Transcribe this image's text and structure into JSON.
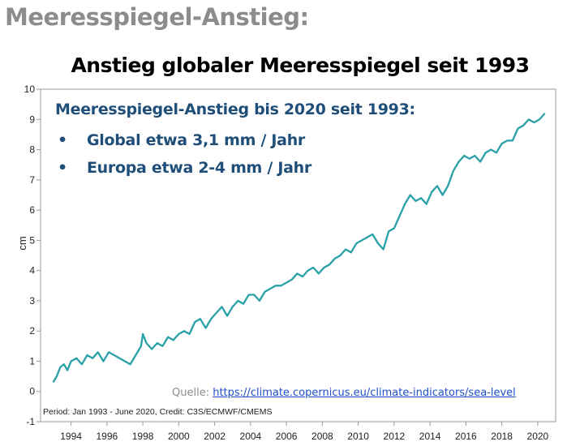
{
  "heading": "Meeresspiegel-Anstieg:",
  "annotation": {
    "title": "Meeresspiegel-Anstieg bis 2020 seit 1993:",
    "bullets": [
      {
        "marker": "•",
        "text": "Global etwa 3,1 mm / Jahr"
      },
      {
        "marker": "•",
        "text": "Europa etwa 2-4 mm / Jahr"
      }
    ]
  },
  "source": {
    "label": "Quelle:",
    "link_text": "https://climate.copernicus.eu/climate-indicators/sea-level"
  },
  "colors": {
    "line": "#2aa0a8",
    "annotation_text": "#1f4e79",
    "heading": "#8c8c8c",
    "link": "#1f4ec9"
  },
  "chart_data": {
    "type": "line",
    "title": "Anstieg globaler Meeresspiegel seit 1993",
    "xlabel": "",
    "ylabel": "cm",
    "note": "Period: Jan 1993 - June 2020, Credit: C3S/ECMWF/CMEMS",
    "xlim": [
      1992.3,
      2021.0
    ],
    "ylim": [
      -1,
      10
    ],
    "grid": false,
    "x_ticks": [
      1994,
      1996,
      1998,
      2000,
      2002,
      2004,
      2006,
      2008,
      2010,
      2012,
      2014,
      2016,
      2018,
      2020
    ],
    "y_ticks": [
      -1,
      0,
      1,
      2,
      3,
      4,
      5,
      6,
      7,
      8,
      9,
      10
    ],
    "series": [
      {
        "x": [
          1993.0,
          1993.2,
          1993.4,
          1993.6,
          1993.8,
          1994.0,
          1994.3,
          1994.6,
          1994.9,
          1995.2,
          1995.5,
          1995.8,
          1996.1,
          1996.4,
          1996.7,
          1997.0,
          1997.3,
          1997.6,
          1997.9,
          1998.0,
          1998.2,
          1998.5,
          1998.8,
          1999.1,
          1999.4,
          1999.7,
          2000.0,
          2000.3,
          2000.6,
          2000.9,
          2001.2,
          2001.5,
          2001.8,
          2002.1,
          2002.4,
          2002.7,
          2003.0,
          2003.3,
          2003.6,
          2003.9,
          2004.2,
          2004.5,
          2004.8,
          2005.1,
          2005.4,
          2005.7,
          2006.0,
          2006.3,
          2006.6,
          2006.9,
          2007.2,
          2007.5,
          2007.8,
          2008.1,
          2008.4,
          2008.7,
          2009.0,
          2009.3,
          2009.6,
          2009.9,
          2010.2,
          2010.5,
          2010.8,
          2011.1,
          2011.4,
          2011.7,
          2012.0,
          2012.3,
          2012.6,
          2012.9,
          2013.2,
          2013.5,
          2013.8,
          2014.1,
          2014.4,
          2014.7,
          2015.0,
          2015.3,
          2015.6,
          2015.9,
          2016.2,
          2016.5,
          2016.8,
          2017.1,
          2017.4,
          2017.7,
          2018.0,
          2018.3,
          2018.6,
          2018.9,
          2019.2,
          2019.5,
          2019.8,
          2020.1,
          2020.4
        ],
        "y": [
          0.3,
          0.5,
          0.8,
          0.9,
          0.7,
          1.0,
          1.1,
          0.9,
          1.2,
          1.1,
          1.3,
          1.0,
          1.3,
          1.2,
          1.1,
          1.0,
          0.9,
          1.2,
          1.5,
          1.9,
          1.6,
          1.4,
          1.6,
          1.5,
          1.8,
          1.7,
          1.9,
          2.0,
          1.9,
          2.3,
          2.4,
          2.1,
          2.4,
          2.6,
          2.8,
          2.5,
          2.8,
          3.0,
          2.9,
          3.2,
          3.2,
          3.0,
          3.3,
          3.4,
          3.5,
          3.5,
          3.6,
          3.7,
          3.9,
          3.8,
          4.0,
          4.1,
          3.9,
          4.1,
          4.2,
          4.4,
          4.5,
          4.7,
          4.6,
          4.9,
          5.0,
          5.1,
          5.2,
          4.9,
          4.7,
          5.3,
          5.4,
          5.8,
          6.2,
          6.5,
          6.3,
          6.4,
          6.2,
          6.6,
          6.8,
          6.5,
          6.8,
          7.3,
          7.6,
          7.8,
          7.7,
          7.8,
          7.6,
          7.9,
          8.0,
          7.9,
          8.2,
          8.3,
          8.3,
          8.7,
          8.8,
          9.0,
          8.9,
          9.0,
          9.2
        ]
      }
    ]
  }
}
